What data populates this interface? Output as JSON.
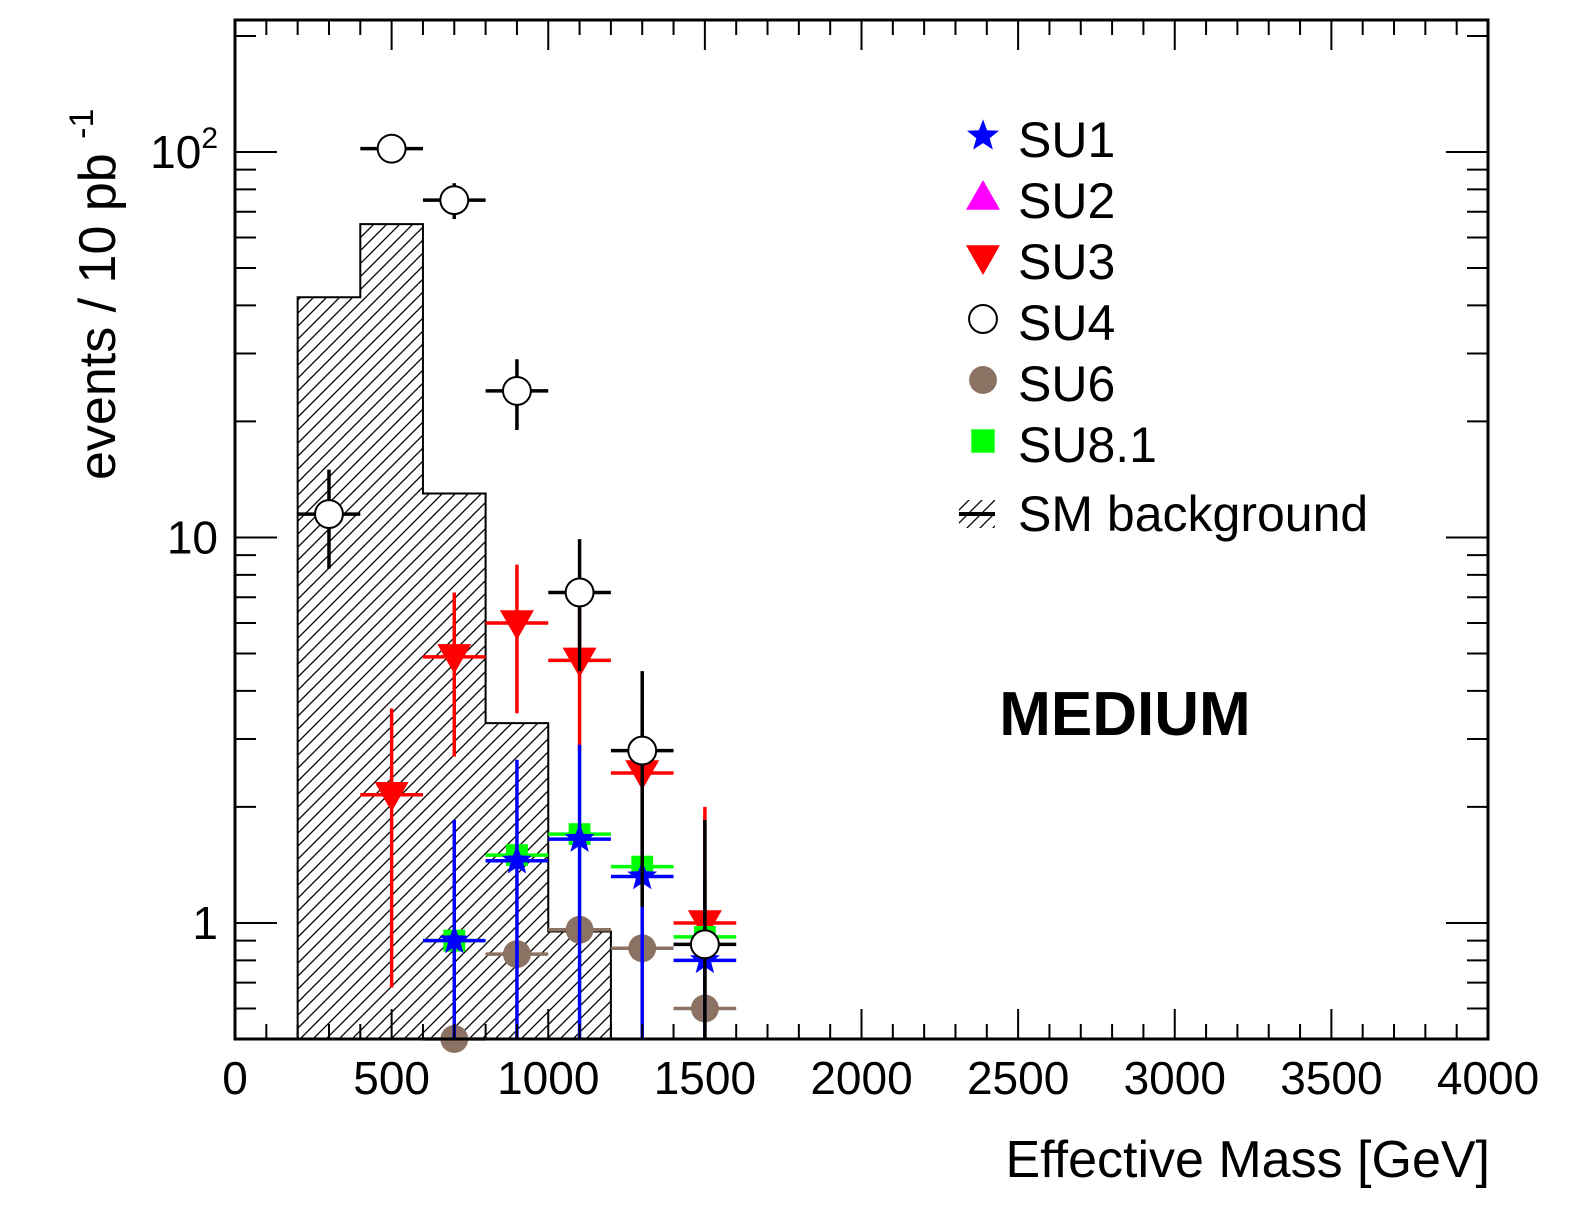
{
  "chart_data": {
    "type": "scatter",
    "xlabel": "Effective Mass [GeV]",
    "ylabel_main": "events / 10 pb",
    "ylabel_sup": "-1",
    "xlim": [
      0,
      4000
    ],
    "ylim": [
      0.5,
      220
    ],
    "log_y": true,
    "grid": false,
    "legend_position": "top-right",
    "x_ticks": [
      {
        "value": 0,
        "label": "0"
      },
      {
        "value": 500,
        "label": "500"
      },
      {
        "value": 1000,
        "label": "1000"
      },
      {
        "value": 1500,
        "label": "1500"
      },
      {
        "value": 2000,
        "label": "2000"
      },
      {
        "value": 2500,
        "label": "2500"
      },
      {
        "value": 3000,
        "label": "3000"
      },
      {
        "value": 3500,
        "label": "3500"
      },
      {
        "value": 4000,
        "label": "4000"
      }
    ],
    "y_ticks": [
      {
        "value": 1,
        "base": "1",
        "exp": ""
      },
      {
        "value": 10,
        "base": "10",
        "exp": ""
      },
      {
        "value": 100,
        "base": "10",
        "exp": "2"
      }
    ],
    "annotation": "MEDIUM",
    "background": {
      "name": "SM background",
      "bin_edges": [
        200,
        400,
        600,
        800,
        1000,
        1200
      ],
      "values": [
        42,
        65,
        13,
        3.3,
        0.95
      ]
    },
    "series": [
      {
        "name": "SU1",
        "marker": "star",
        "color": "#0000ff",
        "halfwidth": 100,
        "points": [
          {
            "x": 700,
            "y": 0.9,
            "lo": 0.4,
            "hi": 1.85
          },
          {
            "x": 900,
            "y": 1.45,
            "lo": 0.5,
            "hi": 2.65
          },
          {
            "x": 1100,
            "y": 1.65,
            "lo": 0.5,
            "hi": 2.9
          },
          {
            "x": 1300,
            "y": 1.32,
            "lo": 0.5,
            "hi": 2.35
          },
          {
            "x": 1500,
            "y": 0.8,
            "lo": 0.5,
            "hi": 1.3
          }
        ]
      },
      {
        "name": "SU2",
        "marker": "triangle-up",
        "color": "#ff00ff",
        "halfwidth": 100,
        "points": []
      },
      {
        "name": "SU3",
        "marker": "triangle-down",
        "color": "#ff0000",
        "halfwidth": 100,
        "points": [
          {
            "x": 500,
            "y": 2.15,
            "lo": 0.68,
            "hi": 3.6
          },
          {
            "x": 700,
            "y": 4.9,
            "lo": 2.7,
            "hi": 7.2
          },
          {
            "x": 900,
            "y": 6.0,
            "lo": 3.5,
            "hi": 8.5
          },
          {
            "x": 1100,
            "y": 4.8,
            "lo": 2.8,
            "hi": 7.0
          },
          {
            "x": 1300,
            "y": 2.45,
            "lo": 1.1,
            "hi": 3.8
          },
          {
            "x": 1500,
            "y": 1.0,
            "lo": 0.6,
            "hi": 2.0
          }
        ]
      },
      {
        "name": "SU4",
        "marker": "circle-open",
        "color": "#000000",
        "halfwidth": 100,
        "points": [
          {
            "x": 300,
            "y": 11.5,
            "lo": 8.3,
            "hi": 15.0
          },
          {
            "x": 500,
            "y": 102,
            "lo": 95,
            "hi": 110
          },
          {
            "x": 700,
            "y": 75,
            "lo": 67,
            "hi": 83
          },
          {
            "x": 900,
            "y": 24,
            "lo": 19,
            "hi": 29
          },
          {
            "x": 1100,
            "y": 7.2,
            "lo": 4.5,
            "hi": 9.9
          },
          {
            "x": 1300,
            "y": 2.8,
            "lo": 1.1,
            "hi": 4.5
          },
          {
            "x": 1500,
            "y": 0.88,
            "lo": 0.5,
            "hi": 1.85
          }
        ]
      },
      {
        "name": "SU6",
        "marker": "circle-filled",
        "color": "#8b7262",
        "halfwidth": 100,
        "points": [
          {
            "x": 700,
            "y": 0.5,
            "lo": 0.5,
            "hi": 0.5
          },
          {
            "x": 900,
            "y": 0.83,
            "lo": 0.83,
            "hi": 0.83
          },
          {
            "x": 1100,
            "y": 0.96,
            "lo": 0.96,
            "hi": 0.96
          },
          {
            "x": 1300,
            "y": 0.86,
            "lo": 0.86,
            "hi": 0.86
          },
          {
            "x": 1500,
            "y": 0.6,
            "lo": 0.6,
            "hi": 0.6
          }
        ]
      },
      {
        "name": "SU8.1",
        "marker": "square",
        "color": "#00ff00",
        "halfwidth": 100,
        "points": [
          {
            "x": 700,
            "y": 0.9,
            "lo": 0.9,
            "hi": 0.9
          },
          {
            "x": 900,
            "y": 1.5,
            "lo": 1.5,
            "hi": 1.5
          },
          {
            "x": 1100,
            "y": 1.7,
            "lo": 1.7,
            "hi": 1.7
          },
          {
            "x": 1300,
            "y": 1.4,
            "lo": 1.4,
            "hi": 1.4
          },
          {
            "x": 1500,
            "y": 0.92,
            "lo": 0.92,
            "hi": 0.92
          }
        ]
      }
    ]
  }
}
